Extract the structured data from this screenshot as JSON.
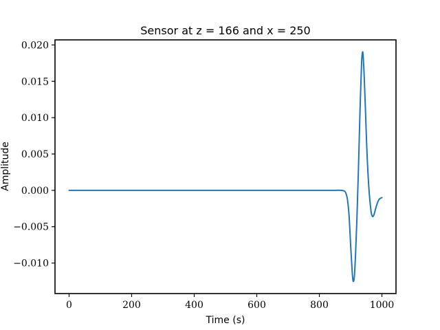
{
  "chart_data": {
    "type": "line",
    "title": "Sensor at z = 166 and x = 250",
    "xlabel": "Time (s)",
    "ylabel": "Amplitude",
    "xlim": [
      -45,
      1045
    ],
    "ylim": [
      -0.0142,
      0.0207
    ],
    "grid": false,
    "legend": "none",
    "color": "#1f77b4",
    "x_ticks": [
      0,
      200,
      400,
      600,
      800,
      1000
    ],
    "x_tick_labels": [
      "0",
      "200",
      "400",
      "600",
      "800",
      "1000"
    ],
    "y_ticks": [
      0.02,
      0.015,
      0.01,
      0.005,
      0.0,
      -0.005,
      -0.01
    ],
    "y_tick_labels": [
      "0.020",
      "0.015",
      "0.010",
      "0.005",
      "0.000",
      "−0.005",
      "−0.010"
    ],
    "series": [
      {
        "x": [
          0,
          100,
          200,
          300,
          400,
          500,
          600,
          700,
          800,
          850,
          870,
          880,
          885,
          890,
          895,
          900,
          905,
          908,
          912,
          916,
          920,
          925,
          930,
          935,
          938,
          940,
          943,
          947,
          952,
          958,
          965,
          970,
          975,
          980,
          985,
          990,
          995,
          1000
        ],
        "y": [
          0,
          0,
          0,
          0,
          0,
          0,
          0,
          0,
          0,
          0,
          0,
          -0.0001,
          -0.0004,
          -0.0013,
          -0.0035,
          -0.0075,
          -0.0112,
          -0.0125,
          -0.0118,
          -0.0085,
          -0.004,
          0.003,
          0.011,
          0.0175,
          0.019,
          0.0185,
          0.016,
          0.0115,
          0.0055,
          0.0005,
          -0.0028,
          -0.0036,
          -0.0033,
          -0.0025,
          -0.0018,
          -0.0013,
          -0.0011,
          -0.001
        ]
      }
    ]
  }
}
